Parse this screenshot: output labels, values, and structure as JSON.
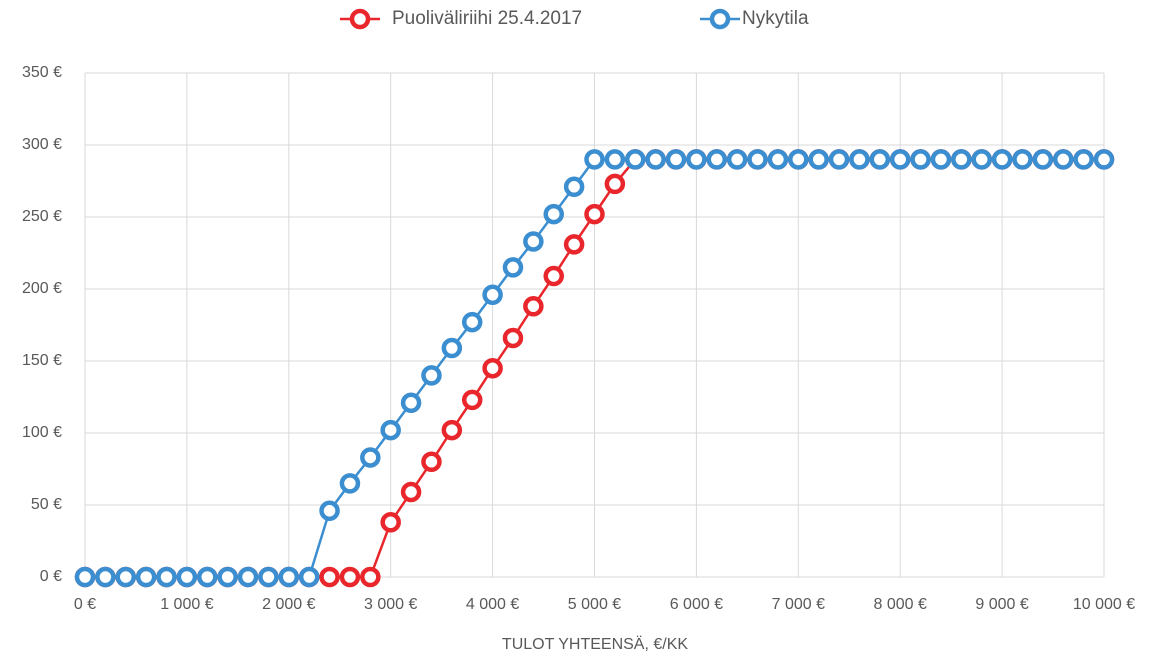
{
  "chart_data": {
    "type": "line",
    "x_label": "TULOT YHTEENSÄ, €/KK",
    "x": [
      0,
      200,
      400,
      600,
      800,
      1000,
      1200,
      1400,
      1600,
      1800,
      2000,
      2200,
      2400,
      2600,
      2800,
      3000,
      3200,
      3400,
      3600,
      3800,
      4000,
      4200,
      4400,
      4600,
      4800,
      5000,
      5200,
      5400,
      5600,
      5800,
      6000,
      6200,
      6400,
      6600,
      6800,
      7000,
      7200,
      7400,
      7600,
      7800,
      8000,
      8200,
      8400,
      8600,
      8800,
      9000,
      9200,
      9400,
      9600,
      9800,
      10000
    ],
    "series": [
      {
        "name": "Puoliväliriihi 25.4.2017",
        "color": "#e8262b",
        "values": [
          0,
          0,
          0,
          0,
          0,
          0,
          0,
          0,
          0,
          0,
          0,
          0,
          0,
          0,
          0,
          38,
          59,
          80,
          102,
          123,
          145,
          166,
          188,
          209,
          231,
          252,
          273,
          290,
          290,
          290,
          290,
          290,
          290,
          290,
          290,
          290,
          290,
          290,
          290,
          290,
          290,
          290,
          290,
          290,
          290,
          290,
          290,
          290,
          290,
          290,
          290
        ]
      },
      {
        "name": "Nykytila",
        "color": "#3b8ed0",
        "values": [
          0,
          0,
          0,
          0,
          0,
          0,
          0,
          0,
          0,
          0,
          0,
          0,
          46,
          65,
          83,
          102,
          121,
          140,
          159,
          177,
          196,
          215,
          233,
          252,
          271,
          290,
          290,
          290,
          290,
          290,
          290,
          290,
          290,
          290,
          290,
          290,
          290,
          290,
          290,
          290,
          290,
          290,
          290,
          290,
          290,
          290,
          290,
          290,
          290,
          290,
          290
        ]
      }
    ],
    "xlim": [
      0,
      10000
    ],
    "xticks": [
      {
        "value": 0,
        "label": "0 €"
      },
      {
        "value": 1000,
        "label": "1 000 €"
      },
      {
        "value": 2000,
        "label": "2 000 €"
      },
      {
        "value": 3000,
        "label": "3 000 €"
      },
      {
        "value": 4000,
        "label": "4 000 €"
      },
      {
        "value": 5000,
        "label": "5 000 €"
      },
      {
        "value": 6000,
        "label": "6 000 €"
      },
      {
        "value": 7000,
        "label": "7 000 €"
      },
      {
        "value": 8000,
        "label": "8 000 €"
      },
      {
        "value": 9000,
        "label": "9 000 €"
      },
      {
        "value": 10000,
        "label": "10 000 €"
      }
    ],
    "ylim": [
      0,
      350
    ],
    "yticks": [
      {
        "value": 0,
        "label": "0 €"
      },
      {
        "value": 50,
        "label": "50 €"
      },
      {
        "value": 100,
        "label": "100 €"
      },
      {
        "value": 150,
        "label": "150 €"
      },
      {
        "value": 200,
        "label": "200 €"
      },
      {
        "value": 250,
        "label": "250 €"
      },
      {
        "value": 300,
        "label": "300 €"
      },
      {
        "value": 350,
        "label": "350 €"
      }
    ],
    "grid": true,
    "legend": "top"
  }
}
